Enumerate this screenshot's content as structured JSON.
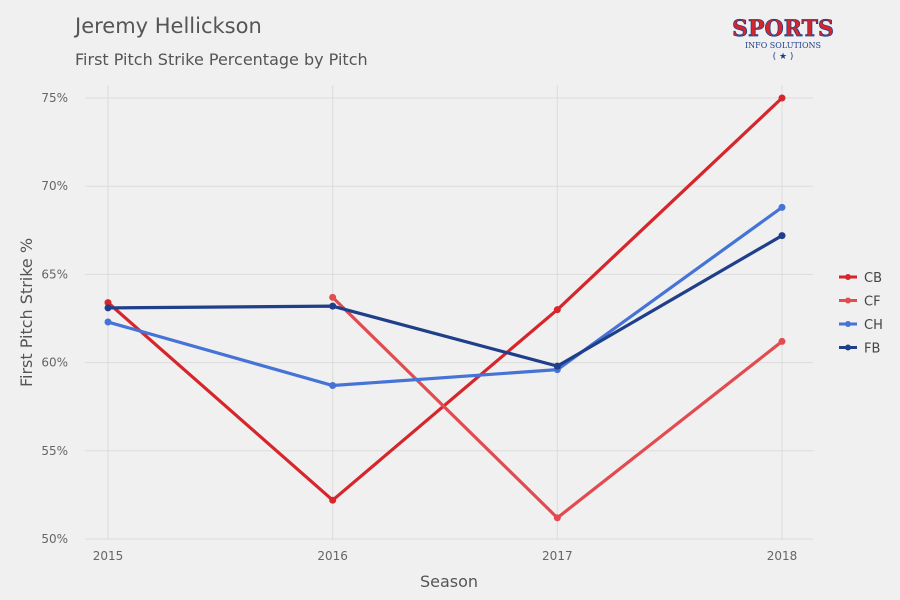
{
  "title": "Jeremy Hellickson",
  "subtitle": "First Pitch Strike Percentage by Pitch",
  "logo": {
    "text_main": "SPORTS",
    "text_sub": "INFO SOLUTIONS"
  },
  "chart_data": {
    "type": "line",
    "title": "Jeremy Hellickson",
    "subtitle": "First Pitch Strike Percentage by Pitch",
    "xlabel": "Season",
    "ylabel": "First Pitch Strike %",
    "x": [
      2015,
      2016,
      2017,
      2018
    ],
    "x_tick_labels": [
      "2015",
      "2016",
      "2017",
      "2018"
    ],
    "ylim": [
      50,
      75
    ],
    "y_ticks": [
      50,
      55,
      60,
      65,
      70,
      75
    ],
    "y_tick_labels": [
      "50%",
      "55%",
      "60%",
      "65%",
      "70%",
      "75%"
    ],
    "grid": true,
    "legend_position": "right",
    "series": [
      {
        "name": "CB",
        "color": "#d7262b",
        "values": [
          63.4,
          52.2,
          63.0,
          75.0
        ]
      },
      {
        "name": "CF",
        "color": "#e24b50",
        "values": [
          null,
          63.7,
          51.2,
          61.2
        ]
      },
      {
        "name": "CH",
        "color": "#4573d6",
        "values": [
          62.3,
          58.7,
          59.6,
          68.8
        ]
      },
      {
        "name": "FB",
        "color": "#1f3f8a",
        "values": [
          63.1,
          63.2,
          59.8,
          67.2
        ]
      }
    ]
  }
}
